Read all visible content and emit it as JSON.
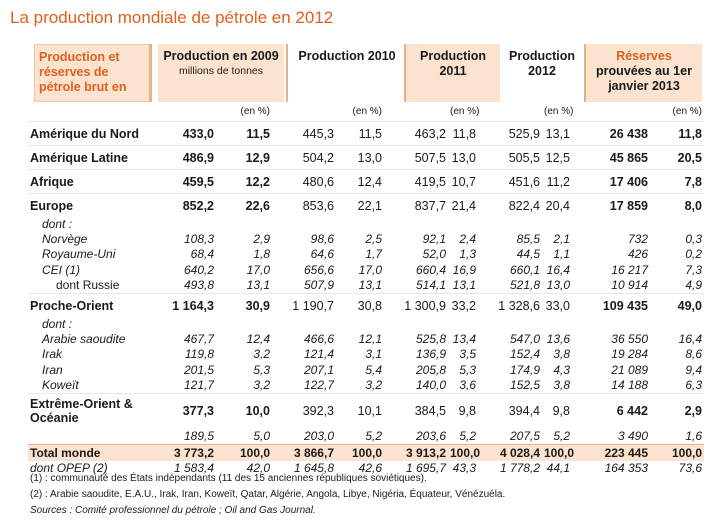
{
  "title": "La production mondiale de pétrole en 2012",
  "headers": {
    "col0": "Production et réserves de pétrole brut  en",
    "col1_main": "Production en 2009",
    "col1_sub": "millions de tonnes",
    "col2": "Production  2010",
    "col3": "Production 2011",
    "col4": "Production 2012",
    "col5_red": "Réserves",
    "col5_rest": " prouvées au 1er janvier 2013"
  },
  "pct_label": "(en %)",
  "rows": [
    {
      "type": "main",
      "label": "Amérique du Nord",
      "v": [
        "433,0",
        "11,5",
        "445,3",
        "11,5",
        "463,2",
        "11,8",
        "525,9",
        "13,1",
        "26 438",
        "11,8"
      ]
    },
    {
      "type": "main",
      "label": "Amérique Latine",
      "v": [
        "486,9",
        "12,9",
        "504,2",
        "13,0",
        "507,5",
        "13,0",
        "505,5",
        "12,5",
        "45 865",
        "20,5"
      ]
    },
    {
      "type": "main",
      "label": "Afrique",
      "v": [
        "459,5",
        "12,2",
        "480,6",
        "12,4",
        "419,5",
        "10,7",
        "451,6",
        "11,2",
        "17 406",
        "7,8"
      ]
    },
    {
      "type": "main",
      "label": "Europe",
      "v": [
        "852,2",
        "22,6",
        "853,6",
        "22,1",
        "837,7",
        "21,4",
        "822,4",
        "20,4",
        "17 859",
        "8,0"
      ]
    },
    {
      "type": "dont",
      "label": "dont :"
    },
    {
      "type": "sub",
      "label": "Norvège",
      "v": [
        "108,3",
        "2,9",
        "98,6",
        "2,5",
        "92,1",
        "2,4",
        "85,5",
        "2,1",
        "732",
        "0,3"
      ]
    },
    {
      "type": "sub",
      "label": "Royaume-Uni",
      "v": [
        "68,4",
        "1,8",
        "64,6",
        "1,7",
        "52,0",
        "1,3",
        "44,5",
        "1,1",
        "426",
        "0,2"
      ]
    },
    {
      "type": "sub",
      "label": "CEI (1)",
      "v": [
        "640,2",
        "17,0",
        "656,6",
        "17,0",
        "660,4",
        "16,9",
        "660,1",
        "16,4",
        "16 217",
        "7,3"
      ]
    },
    {
      "type": "subdeep",
      "label": "dont Russie",
      "v": [
        "493,8",
        "13,1",
        "507,9",
        "13,1",
        "514,1",
        "13,1",
        "521,8",
        "13,0",
        "10 914",
        "4,9"
      ]
    },
    {
      "type": "main",
      "label": "Proche-Orient",
      "v": [
        "1 164,3",
        "30,9",
        "1 190,7",
        "30,8",
        "1 300,9",
        "33,2",
        "1 328,6",
        "33,0",
        "109 435",
        "49,0"
      ]
    },
    {
      "type": "dont",
      "label": "dont :"
    },
    {
      "type": "sub",
      "label": "Arabie saoudite",
      "v": [
        "467,7",
        "12,4",
        "466,6",
        "12,1",
        "525,8",
        "13,4",
        "547,0",
        "13,6",
        "36 550",
        "16,4"
      ]
    },
    {
      "type": "sub",
      "label": "Irak",
      "v": [
        "119,8",
        "3,2",
        "121,4",
        "3,1",
        "136,9",
        "3,5",
        "152,4",
        "3,8",
        "19 284",
        "8,6"
      ]
    },
    {
      "type": "sub",
      "label": "Iran",
      "v": [
        "201,5",
        "5,3",
        "207,1",
        "5,4",
        "205,8",
        "5,3",
        "174,9",
        "4,3",
        "21 089",
        "9,4"
      ]
    },
    {
      "type": "sub",
      "label": "Koweït",
      "v": [
        "121,7",
        "3,2",
        "122,7",
        "3,2",
        "140,0",
        "3,6",
        "152,5",
        "3,8",
        "14 188",
        "6,3"
      ]
    },
    {
      "type": "big",
      "label": "Extrême-Orient & Océanie",
      "v": [
        "377,3",
        "10,0",
        "392,3",
        "10,1",
        "384,5",
        "9,8",
        "394,4",
        "9,8",
        "6 442",
        "2,9"
      ]
    },
    {
      "type": "sub",
      "label": "",
      "v": [
        "189,5",
        "5,0",
        "203,0",
        "5,2",
        "203,6",
        "5,2",
        "207,5",
        "5,2",
        "3 490",
        "1,6"
      ]
    },
    {
      "type": "total",
      "label": "Total monde",
      "v": [
        "3 773,2",
        "100,0",
        "3 866,7",
        "100,0",
        "3 913,2",
        "100,0",
        "4 028,4",
        "100,0",
        "223 445",
        "100,0"
      ]
    },
    {
      "type": "opep",
      "label": "dont OPEP (2)",
      "v": [
        "1 583,4",
        "42,0",
        "1 645,8",
        "42,6",
        "1 695,7",
        "43,3",
        "1 778,2",
        "44,1",
        "164 353",
        "73,6"
      ]
    }
  ],
  "notes": {
    "n1": "(1) : communauté des États indépendants (11 des 15 anciennes républiques soviétiques).",
    "n2": "(2) : Arabie saoudite, E.A.U., Irak, Iran, Koweït, Qatar, Algérie, Angola, Libye, Nigéria, Équateur, Vénézuéla.",
    "src": "Sources : Comité professionnel du pétrole ; Oil and Gas Journal."
  }
}
